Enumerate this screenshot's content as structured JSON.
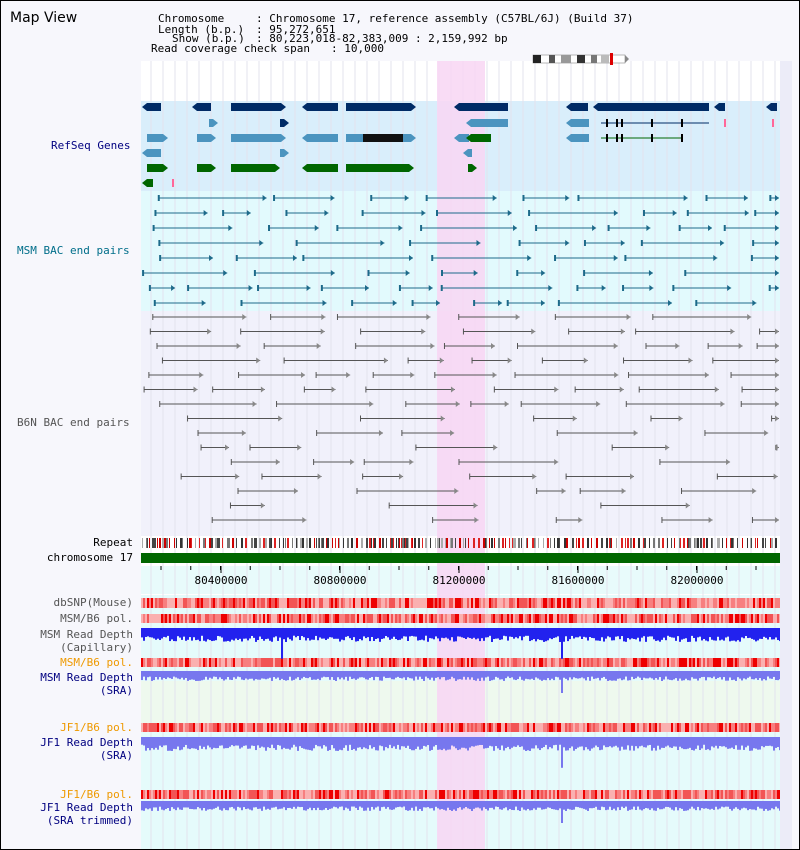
{
  "panel": {
    "title": "Map View"
  },
  "info": {
    "chromosome_key": "Chromosome",
    "chromosome_value": ": Chromosome 17, reference assembly (C57BL/6J) (Build 37)",
    "length_key": "Length (b.p.)",
    "length_value": ": 95,272,651",
    "show_key": "Show (b.p.)",
    "show_value": ": 80,223,018-82,383,009 : 2,159,992 bp",
    "coverage_key": "Read coverage check span",
    "coverage_value": ": 10,000"
  },
  "tracks": {
    "refseq": "RefSeq Genes",
    "msm_bac": "MSM BAC end pairs",
    "b6n_bac": "B6N BAC end pairs",
    "repeat": "Repeat",
    "chromosome": "chromosome 17",
    "dbsnp": "dbSNP(Mouse)",
    "msm_b6_pol_1": "MSM/B6 pol.",
    "msm_depth_cap_1": "MSM Read Depth",
    "msm_depth_cap_2": "(Capillary)",
    "msm_b6_pol_2": "MSM/B6 pol.",
    "msm_depth_sra_1": "MSM Read Depth",
    "msm_depth_sra_2": "(SRA)",
    "jf1_b6_pol_1": "JF1/B6 pol.",
    "jf1_depth_sra_1": "JF1 Read Depth",
    "jf1_depth_sra_2": "(SRA)",
    "jf1_b6_pol_2": "JF1/B6 pol.",
    "jf1_depth_trim_1": "JF1 Read Depth",
    "jf1_depth_trim_2": "(SRA trimmed)"
  },
  "ruler": {
    "ticks": [
      "80400000",
      "80800000",
      "81200000",
      "81600000",
      "82000000"
    ]
  },
  "colors": {
    "refseq_dark": "#002b66",
    "refseq_mid": "#4b94bf",
    "refseq_green": "#006600",
    "msm_teal": "#1d6a8a",
    "b6n_gray": "#555555",
    "highlight": "#f8d6f3",
    "depth_blue": "#2222ee",
    "depth_light": "#7777ee",
    "chromosome_green": "#006600",
    "label_navy": "#000080",
    "label_orange": "#ee9900",
    "label_teal": "#006e8a",
    "label_gray": "#555555"
  }
}
